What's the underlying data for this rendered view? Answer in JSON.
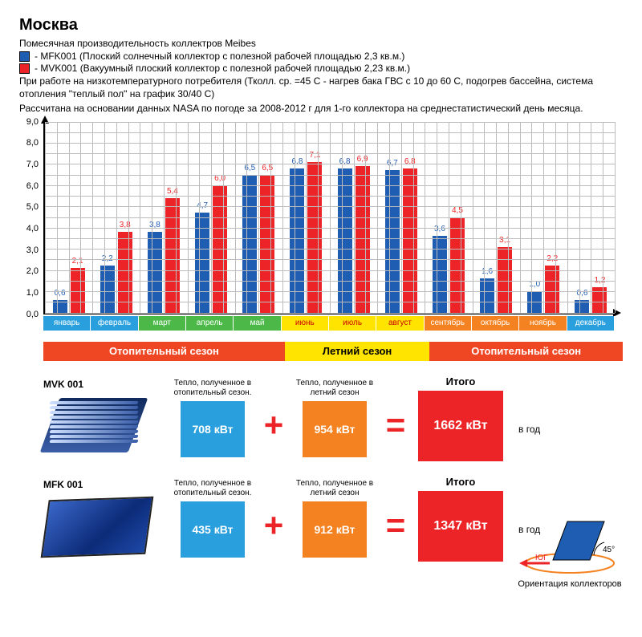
{
  "title": "Москва",
  "subtitle": "Помесячная производительность коллектров Meibes",
  "legend": [
    {
      "color": "#1f5db3",
      "text": "- MFK001 (Плоский солнечный коллектор с полезной рабочей площадью 2,3 кв.м.)"
    },
    {
      "color": "#ec2427",
      "text": "- MVK001 (Вакуумный плоский коллектор с полезной рабочей площадью 2,23 кв.м.)"
    }
  ],
  "desc1": "При работе на низкотемпературного потребителя (Тколл. ср. =45 С - нагрев бака ГВС с 10 до 60 С, подогрев бассейна, система отопления \"теплый пол\" на график 30/40 С)",
  "desc2": "Рассчитана на основании данных NASA по погоде за 2008-2012 г для 1-го коллектора на среднестатистический день месяца.",
  "chart": {
    "type": "bar",
    "ylim": [
      0,
      9
    ],
    "ytick_step": 1,
    "y_minor_step": 0.5,
    "x_minor_per_month": 4,
    "grid_color": "#bcbcbc",
    "bar_colors": {
      "mfk": "#1f5db3",
      "mvk": "#ec2427"
    },
    "label_color": {
      "mfk": "#1f5db3",
      "mvk": "#ec2427"
    },
    "months": [
      {
        "name": "январь",
        "bg": "#29a0dd",
        "mfk": 0.6,
        "mvk": 2.1
      },
      {
        "name": "февраль",
        "bg": "#29a0dd",
        "mfk": 2.2,
        "mvk": 3.8
      },
      {
        "name": "март",
        "bg": "#4cb848",
        "mfk": 3.8,
        "mvk": 5.4
      },
      {
        "name": "апрель",
        "bg": "#4cb848",
        "mfk": 4.7,
        "mvk": 6.0
      },
      {
        "name": "май",
        "bg": "#4cb848",
        "mfk": 6.5,
        "mvk": 6.5
      },
      {
        "name": "июнь",
        "bg": "#ffe400",
        "mfk": 6.8,
        "mvk": 7.1
      },
      {
        "name": "июль",
        "bg": "#ffe400",
        "mfk": 6.8,
        "mvk": 6.9
      },
      {
        "name": "август",
        "bg": "#ffe400",
        "mfk": 6.7,
        "mvk": 6.8
      },
      {
        "name": "сентябрь",
        "bg": "#f58220",
        "mfk": 3.6,
        "mvk": 4.5
      },
      {
        "name": "октябрь",
        "bg": "#f58220",
        "mfk": 1.6,
        "mvk": 3.1
      },
      {
        "name": "ноябрь",
        "bg": "#f58220",
        "mfk": 1.0,
        "mvk": 2.2
      },
      {
        "name": "декабрь",
        "bg": "#29a0dd",
        "mfk": 0.6,
        "mvk": 1.2
      }
    ]
  },
  "seasons": [
    {
      "label": "Отопительный сезон",
      "color": "#ef4723",
      "text": "#fff",
      "span": 5
    },
    {
      "label": "Летний сезон",
      "color": "#ffe400",
      "text": "#000",
      "span": 3
    },
    {
      "label": "Отопительный сезон",
      "color": "#ef4723",
      "text": "#fff",
      "span": 4
    }
  ],
  "rows": [
    {
      "name": "MVK 001",
      "img": "tube",
      "heat_cap": "Тепло, полученное в отопительный сезон.",
      "heat_val": "708 кВт",
      "heat_color": "#29a0dd",
      "summer_cap": "Тепло, полученное в летний сезон",
      "summer_val": "954 кВт",
      "summer_color": "#f58220",
      "total_cap": "Итого",
      "total_val": "1662 кВт",
      "total_color": "#ec2427",
      "peryear": "в год"
    },
    {
      "name": "MFK 001",
      "img": "flat",
      "heat_cap": "Тепло, полученное в отопительный сезон.",
      "heat_val": "435 кВт",
      "heat_color": "#29a0dd",
      "summer_cap": "Тепло, полученное в летний сезон",
      "summer_val": "912 кВт",
      "summer_color": "#f58220",
      "total_cap": "Итого",
      "total_val": "1347 кВт",
      "total_color": "#ec2427",
      "peryear": "в год"
    }
  ],
  "orientation": {
    "south": "ЮГ",
    "angle": "45°",
    "caption": "Ориентация коллекторов",
    "arrow_color": "#ec2427",
    "ellipse_color": "#f58220",
    "panel_color": "#1f5db3"
  }
}
